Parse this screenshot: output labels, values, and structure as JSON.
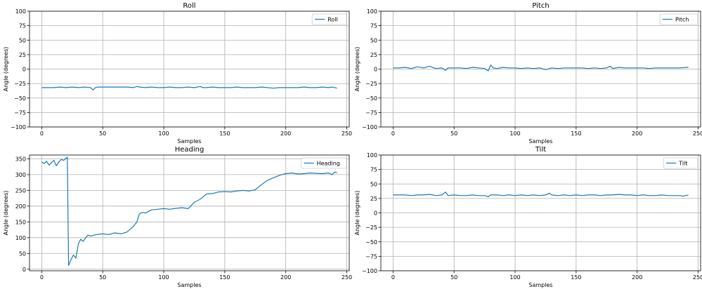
{
  "chart_data": [
    {
      "type": "line",
      "title": "Roll",
      "xlabel": "Samples",
      "ylabel": "Angle (degrees)",
      "xlim": [
        -10,
        252
      ],
      "ylim": [
        -100,
        100
      ],
      "xticks": [
        0,
        50,
        100,
        150,
        200,
        250
      ],
      "yticks": [
        -100,
        -75,
        -50,
        -25,
        0,
        25,
        50,
        75,
        100
      ],
      "grid": true,
      "legend_position": "top-right",
      "series": [
        {
          "name": "Roll",
          "color": "#1f77b4",
          "x": [
            0,
            5,
            10,
            15,
            20,
            25,
            30,
            35,
            40,
            42,
            44,
            46,
            50,
            55,
            60,
            65,
            70,
            75,
            78,
            80,
            85,
            90,
            95,
            100,
            105,
            110,
            115,
            120,
            125,
            130,
            132,
            135,
            140,
            145,
            150,
            155,
            160,
            165,
            170,
            175,
            180,
            185,
            190,
            195,
            200,
            205,
            210,
            215,
            220,
            225,
            230,
            235,
            238,
            242
          ],
          "y": [
            -32,
            -32,
            -32,
            -31,
            -32,
            -31,
            -32,
            -31,
            -32,
            -36,
            -32,
            -31,
            -31,
            -31,
            -31,
            -31,
            -31,
            -32,
            -30,
            -31,
            -32,
            -31,
            -32,
            -32,
            -31,
            -32,
            -32,
            -31,
            -32,
            -30,
            -32,
            -32,
            -31,
            -32,
            -32,
            -32,
            -31,
            -32,
            -32,
            -32,
            -31,
            -32,
            -33,
            -32,
            -32,
            -32,
            -32,
            -31,
            -32,
            -32,
            -31,
            -32,
            -31,
            -33
          ]
        }
      ]
    },
    {
      "type": "line",
      "title": "Pitch",
      "xlabel": "Samples",
      "ylabel": "Angle (degrees)",
      "xlim": [
        -10,
        252
      ],
      "ylim": [
        -100,
        100
      ],
      "xticks": [
        0,
        50,
        100,
        150,
        200,
        250
      ],
      "yticks": [
        -100,
        -75,
        -50,
        -25,
        0,
        25,
        50,
        75,
        100
      ],
      "grid": true,
      "legend_position": "top-right",
      "series": [
        {
          "name": "Pitch",
          "color": "#1f77b4",
          "x": [
            0,
            5,
            10,
            15,
            20,
            25,
            30,
            35,
            40,
            43,
            45,
            50,
            55,
            60,
            65,
            70,
            75,
            78,
            80,
            82,
            85,
            90,
            95,
            100,
            105,
            110,
            115,
            120,
            125,
            130,
            135,
            140,
            145,
            150,
            155,
            160,
            165,
            170,
            175,
            178,
            180,
            185,
            190,
            195,
            200,
            205,
            210,
            215,
            220,
            225,
            230,
            235,
            242
          ],
          "y": [
            2,
            2,
            3,
            1,
            4,
            2,
            5,
            1,
            2,
            -2,
            2,
            2,
            2,
            1,
            3,
            2,
            1,
            -3,
            7,
            2,
            1,
            3,
            2,
            2,
            1,
            2,
            1,
            2,
            -1,
            2,
            1,
            2,
            2,
            2,
            2,
            1,
            2,
            1,
            2,
            5,
            1,
            3,
            2,
            2,
            2,
            2,
            1,
            2,
            2,
            2,
            2,
            2,
            3
          ]
        }
      ]
    },
    {
      "type": "line",
      "title": "Heading",
      "xlabel": "Samples",
      "ylabel": "Angle (degrees)",
      "xlim": [
        -10,
        252
      ],
      "ylim": [
        -5,
        362
      ],
      "xticks": [
        0,
        50,
        100,
        150,
        200,
        250
      ],
      "yticks": [
        0,
        50,
        100,
        150,
        200,
        250,
        300,
        350
      ],
      "grid": true,
      "legend_position": "top-right",
      "series": [
        {
          "name": "Heading",
          "color": "#1f77b4",
          "x": [
            0,
            2,
            4,
            6,
            8,
            10,
            12,
            14,
            16,
            18,
            20,
            21,
            22,
            24,
            26,
            28,
            30,
            32,
            34,
            36,
            38,
            40,
            45,
            50,
            55,
            60,
            65,
            70,
            75,
            78,
            80,
            82,
            85,
            90,
            95,
            100,
            105,
            110,
            115,
            120,
            125,
            130,
            135,
            140,
            145,
            150,
            155,
            160,
            165,
            170,
            175,
            180,
            185,
            190,
            195,
            200,
            205,
            210,
            215,
            220,
            225,
            230,
            235,
            238,
            240,
            242
          ],
          "y": [
            340,
            335,
            342,
            330,
            338,
            345,
            328,
            340,
            348,
            345,
            352,
            355,
            12,
            30,
            45,
            35,
            80,
            95,
            88,
            100,
            108,
            105,
            110,
            112,
            110,
            115,
            112,
            118,
            135,
            150,
            175,
            180,
            178,
            188,
            190,
            192,
            190,
            193,
            195,
            192,
            212,
            222,
            238,
            240,
            245,
            246,
            245,
            248,
            250,
            248,
            252,
            268,
            282,
            290,
            298,
            303,
            305,
            302,
            303,
            305,
            304,
            303,
            305,
            300,
            308,
            306
          ]
        }
      ]
    },
    {
      "type": "line",
      "title": "Tilt",
      "xlabel": "Samples",
      "ylabel": "Angle (degrees)",
      "xlim": [
        -10,
        252
      ],
      "ylim": [
        -100,
        100
      ],
      "xticks": [
        0,
        50,
        100,
        150,
        200,
        250
      ],
      "yticks": [
        -100,
        -75,
        -50,
        -25,
        0,
        25,
        50,
        75,
        100
      ],
      "grid": true,
      "legend_position": "top-right",
      "series": [
        {
          "name": "Tilt",
          "color": "#1f77b4",
          "x": [
            0,
            5,
            10,
            15,
            20,
            25,
            30,
            35,
            40,
            43,
            45,
            50,
            55,
            60,
            65,
            70,
            75,
            78,
            80,
            85,
            90,
            95,
            100,
            105,
            110,
            115,
            120,
            125,
            128,
            130,
            135,
            140,
            145,
            150,
            155,
            160,
            165,
            170,
            175,
            180,
            185,
            190,
            195,
            200,
            205,
            210,
            215,
            220,
            225,
            230,
            235,
            238,
            242
          ],
          "y": [
            31,
            31,
            31,
            30,
            31,
            31,
            32,
            30,
            31,
            36,
            30,
            31,
            30,
            30,
            31,
            30,
            30,
            28,
            31,
            31,
            30,
            31,
            30,
            31,
            30,
            31,
            30,
            31,
            34,
            31,
            30,
            31,
            30,
            31,
            30,
            31,
            31,
            30,
            31,
            31,
            32,
            31,
            31,
            30,
            31,
            30,
            30,
            31,
            30,
            30,
            30,
            29,
            31
          ]
        }
      ]
    }
  ]
}
